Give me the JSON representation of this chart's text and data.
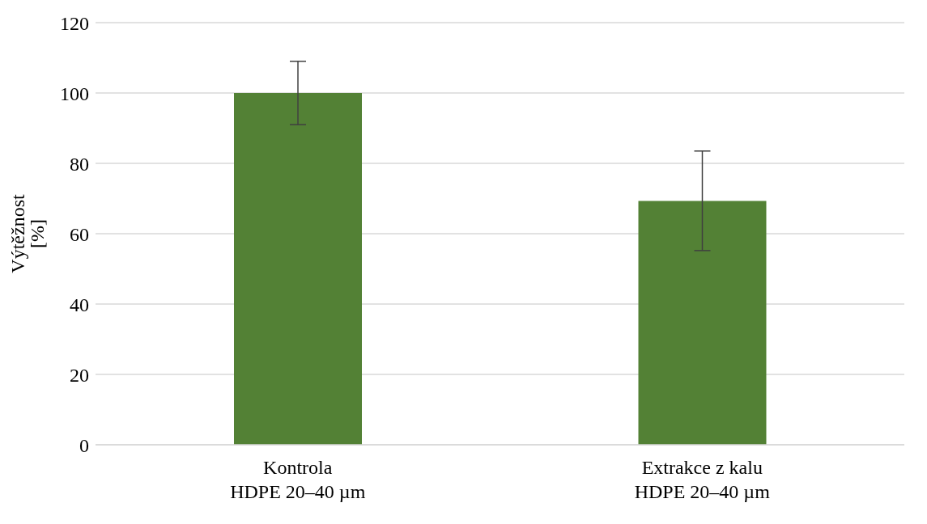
{
  "chart_data": {
    "type": "bar",
    "ylabel": "Výtěžnost\n[%]",
    "categories": [
      "Kontrola\nHDPE 20–40 µm",
      "Extrakce z kalu\nHDPE 20–40 µm"
    ],
    "values": [
      100,
      69.3
    ],
    "colors": [
      "#538135",
      "#538135"
    ],
    "errors": [
      [
        91,
        109
      ],
      [
        55.2,
        83.5
      ]
    ],
    "ylim": [
      0,
      120
    ],
    "yticks": [
      0,
      20,
      40,
      60,
      80,
      100,
      120
    ],
    "grid": "y",
    "legend": false
  }
}
